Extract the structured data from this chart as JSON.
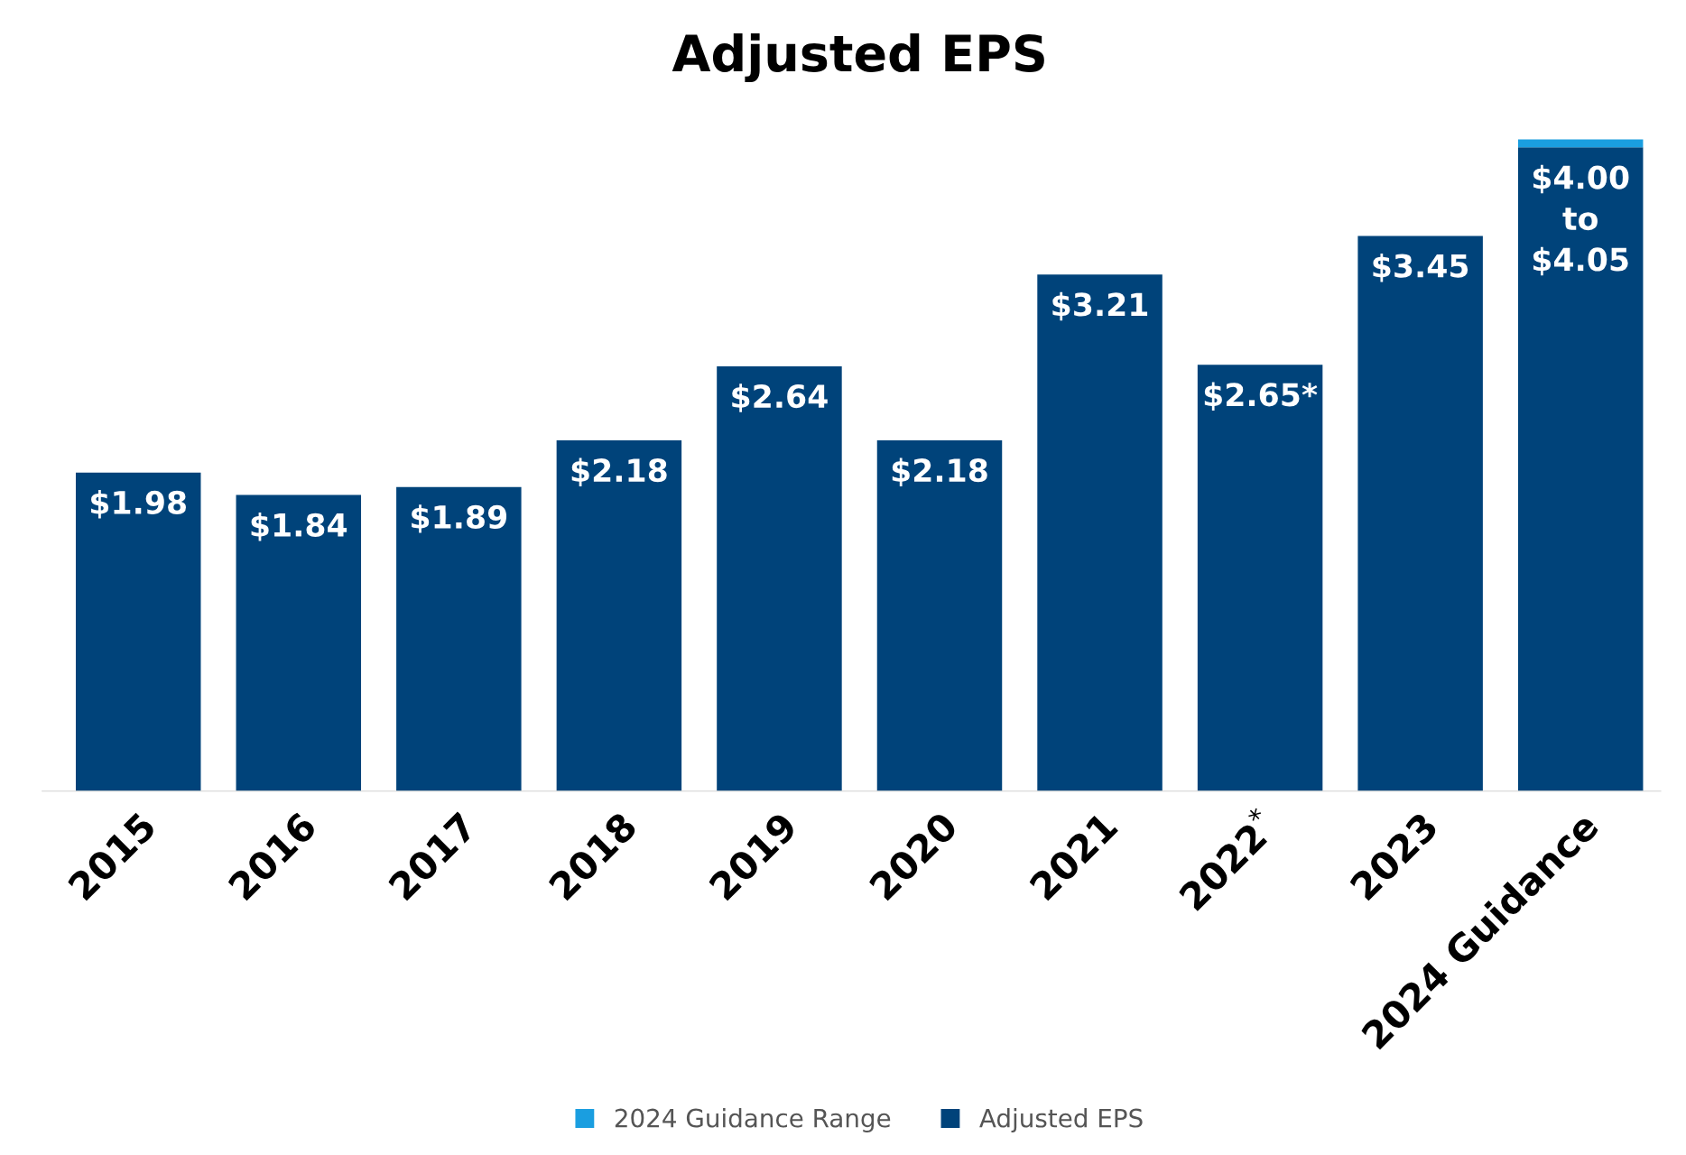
{
  "chart_data": {
    "type": "bar",
    "title": "Adjusted EPS",
    "stacked": true,
    "categories": [
      "2015",
      "2016",
      "2017",
      "2018",
      "2019",
      "2020",
      "2021",
      "2022$^{*}$",
      "2023",
      "2024 Guidance"
    ],
    "series": [
      {
        "name": "Adjusted EPS",
        "color": "#00437a",
        "values": [
          1.98,
          1.84,
          1.89,
          2.18,
          2.64,
          2.18,
          3.21,
          2.65,
          3.45,
          4.0
        ],
        "value_labels": [
          "$1.98",
          "$1.84",
          "$1.89",
          "$2.18",
          "$2.64",
          "$2.18",
          "$3.21",
          "$2.65*",
          "$3.45",
          "$4.00\nto\n$4.05"
        ]
      },
      {
        "name": "2024 Guidance Range",
        "color": "#1a9ee0",
        "values": [
          null,
          null,
          null,
          null,
          null,
          null,
          null,
          null,
          null,
          0.05
        ]
      }
    ],
    "legend": "bottom"
  }
}
